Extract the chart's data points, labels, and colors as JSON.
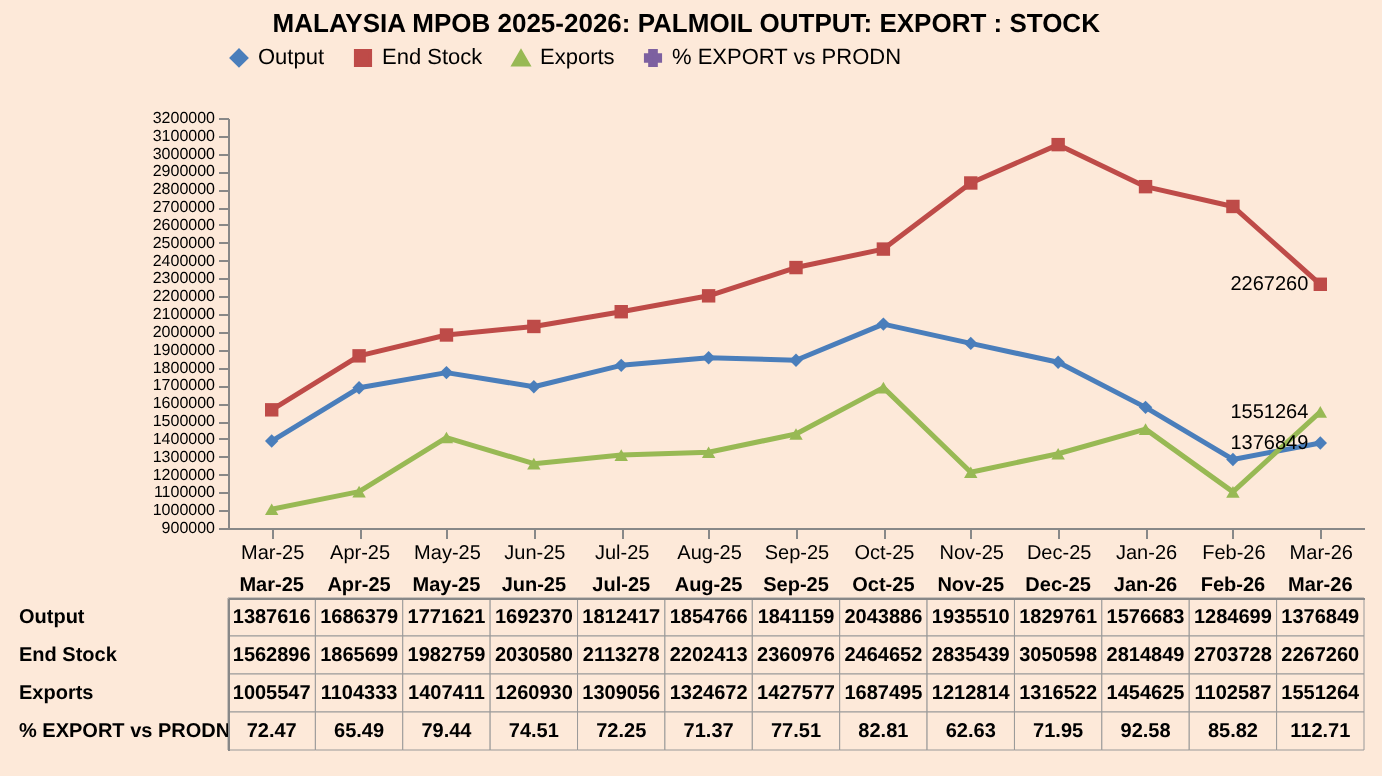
{
  "chart_data": {
    "type": "line",
    "title": "MALAYSIA  MPOB 2025-2026: PALMOIL OUTPUT: EXPORT : STOCK",
    "categories": [
      "Mar-25",
      "Apr-25",
      "May-25",
      "Jun-25",
      "Jul-25",
      "Aug-25",
      "Sep-25",
      "Oct-25",
      "Nov-25",
      "Dec-25",
      "Jan-26",
      "Feb-26",
      "Mar-26"
    ],
    "series": [
      {
        "name": "Output",
        "color": "#4a7ebb",
        "marker": "diamond",
        "values": [
          1387616,
          1686379,
          1771621,
          1692370,
          1812417,
          1854766,
          1841159,
          2043886,
          1935510,
          1829761,
          1576683,
          1284699,
          1376849
        ]
      },
      {
        "name": "End Stock",
        "color": "#be4b48",
        "marker": "square",
        "values": [
          1562896,
          1865699,
          1982759,
          2030580,
          2113278,
          2202413,
          2360976,
          2464652,
          2835439,
          3050598,
          2814849,
          2703728,
          2267260
        ]
      },
      {
        "name": "Exports",
        "color": "#98b954",
        "marker": "triangle",
        "values": [
          1005547,
          1104333,
          1407411,
          1260930,
          1309056,
          1324672,
          1427577,
          1687495,
          1212814,
          1316522,
          1454625,
          1102587,
          1551264
        ]
      },
      {
        "name": "% EXPORT vs PRODN",
        "color": "#7d60a0",
        "marker": "cross",
        "values": [
          null,
          null,
          null,
          null,
          null,
          null,
          null,
          null,
          null,
          null,
          null,
          null,
          null
        ],
        "value_labels": [
          "72.47",
          "65.49",
          "79.44",
          "74.51",
          "72.25",
          "71.37",
          "77.51",
          "82.81",
          "62.63",
          "71.95",
          "92.58",
          "85.82",
          "112.71"
        ]
      }
    ],
    "ylim": [
      900000,
      3200000
    ],
    "yticks": [
      900000,
      1000000,
      1100000,
      1200000,
      1300000,
      1400000,
      1500000,
      1600000,
      1700000,
      1800000,
      1900000,
      2000000,
      2100000,
      2200000,
      2300000,
      2400000,
      2500000,
      2600000,
      2700000,
      2800000,
      2900000,
      3000000,
      3100000,
      3200000
    ],
    "annotations": [
      {
        "text": "2267260",
        "x": "Mar-26",
        "y": 2267260
      },
      {
        "text": "1551264",
        "x": "Mar-26",
        "y": 1551264
      },
      {
        "text": "1376849",
        "x": "Mar-26",
        "y": 1376849
      }
    ],
    "data_labels": true,
    "grid": false,
    "legend": "top",
    "line_style": "solid"
  }
}
